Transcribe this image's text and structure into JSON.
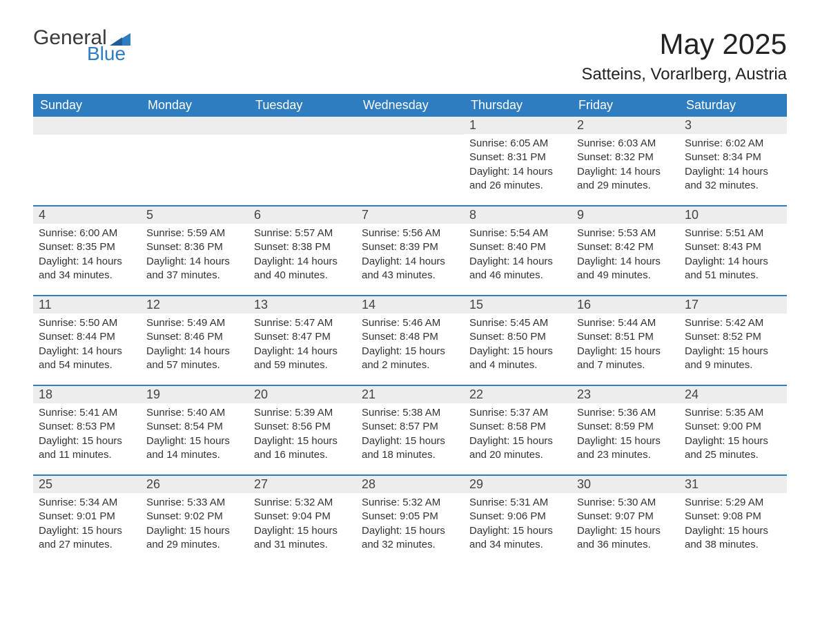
{
  "logo": {
    "general": "General",
    "blue": "Blue"
  },
  "title": "May 2025",
  "location": "Satteins, Vorarlberg, Austria",
  "colors": {
    "header_bg": "#2d7dc0",
    "header_text": "#ffffff",
    "daynum_bg": "#ededed",
    "row_border": "#2d7dc0",
    "body_text": "#333333",
    "logo_gray": "#3a3a3a",
    "logo_blue": "#2d7dc0"
  },
  "day_labels": [
    "Sunday",
    "Monday",
    "Tuesday",
    "Wednesday",
    "Thursday",
    "Friday",
    "Saturday"
  ],
  "weeks": [
    [
      null,
      null,
      null,
      null,
      {
        "n": "1",
        "sr": "Sunrise: 6:05 AM",
        "ss": "Sunset: 8:31 PM",
        "dl": "Daylight: 14 hours and 26 minutes."
      },
      {
        "n": "2",
        "sr": "Sunrise: 6:03 AM",
        "ss": "Sunset: 8:32 PM",
        "dl": "Daylight: 14 hours and 29 minutes."
      },
      {
        "n": "3",
        "sr": "Sunrise: 6:02 AM",
        "ss": "Sunset: 8:34 PM",
        "dl": "Daylight: 14 hours and 32 minutes."
      }
    ],
    [
      {
        "n": "4",
        "sr": "Sunrise: 6:00 AM",
        "ss": "Sunset: 8:35 PM",
        "dl": "Daylight: 14 hours and 34 minutes."
      },
      {
        "n": "5",
        "sr": "Sunrise: 5:59 AM",
        "ss": "Sunset: 8:36 PM",
        "dl": "Daylight: 14 hours and 37 minutes."
      },
      {
        "n": "6",
        "sr": "Sunrise: 5:57 AM",
        "ss": "Sunset: 8:38 PM",
        "dl": "Daylight: 14 hours and 40 minutes."
      },
      {
        "n": "7",
        "sr": "Sunrise: 5:56 AM",
        "ss": "Sunset: 8:39 PM",
        "dl": "Daylight: 14 hours and 43 minutes."
      },
      {
        "n": "8",
        "sr": "Sunrise: 5:54 AM",
        "ss": "Sunset: 8:40 PM",
        "dl": "Daylight: 14 hours and 46 minutes."
      },
      {
        "n": "9",
        "sr": "Sunrise: 5:53 AM",
        "ss": "Sunset: 8:42 PM",
        "dl": "Daylight: 14 hours and 49 minutes."
      },
      {
        "n": "10",
        "sr": "Sunrise: 5:51 AM",
        "ss": "Sunset: 8:43 PM",
        "dl": "Daylight: 14 hours and 51 minutes."
      }
    ],
    [
      {
        "n": "11",
        "sr": "Sunrise: 5:50 AM",
        "ss": "Sunset: 8:44 PM",
        "dl": "Daylight: 14 hours and 54 minutes."
      },
      {
        "n": "12",
        "sr": "Sunrise: 5:49 AM",
        "ss": "Sunset: 8:46 PM",
        "dl": "Daylight: 14 hours and 57 minutes."
      },
      {
        "n": "13",
        "sr": "Sunrise: 5:47 AM",
        "ss": "Sunset: 8:47 PM",
        "dl": "Daylight: 14 hours and 59 minutes."
      },
      {
        "n": "14",
        "sr": "Sunrise: 5:46 AM",
        "ss": "Sunset: 8:48 PM",
        "dl": "Daylight: 15 hours and 2 minutes."
      },
      {
        "n": "15",
        "sr": "Sunrise: 5:45 AM",
        "ss": "Sunset: 8:50 PM",
        "dl": "Daylight: 15 hours and 4 minutes."
      },
      {
        "n": "16",
        "sr": "Sunrise: 5:44 AM",
        "ss": "Sunset: 8:51 PM",
        "dl": "Daylight: 15 hours and 7 minutes."
      },
      {
        "n": "17",
        "sr": "Sunrise: 5:42 AM",
        "ss": "Sunset: 8:52 PM",
        "dl": "Daylight: 15 hours and 9 minutes."
      }
    ],
    [
      {
        "n": "18",
        "sr": "Sunrise: 5:41 AM",
        "ss": "Sunset: 8:53 PM",
        "dl": "Daylight: 15 hours and 11 minutes."
      },
      {
        "n": "19",
        "sr": "Sunrise: 5:40 AM",
        "ss": "Sunset: 8:54 PM",
        "dl": "Daylight: 15 hours and 14 minutes."
      },
      {
        "n": "20",
        "sr": "Sunrise: 5:39 AM",
        "ss": "Sunset: 8:56 PM",
        "dl": "Daylight: 15 hours and 16 minutes."
      },
      {
        "n": "21",
        "sr": "Sunrise: 5:38 AM",
        "ss": "Sunset: 8:57 PM",
        "dl": "Daylight: 15 hours and 18 minutes."
      },
      {
        "n": "22",
        "sr": "Sunrise: 5:37 AM",
        "ss": "Sunset: 8:58 PM",
        "dl": "Daylight: 15 hours and 20 minutes."
      },
      {
        "n": "23",
        "sr": "Sunrise: 5:36 AM",
        "ss": "Sunset: 8:59 PM",
        "dl": "Daylight: 15 hours and 23 minutes."
      },
      {
        "n": "24",
        "sr": "Sunrise: 5:35 AM",
        "ss": "Sunset: 9:00 PM",
        "dl": "Daylight: 15 hours and 25 minutes."
      }
    ],
    [
      {
        "n": "25",
        "sr": "Sunrise: 5:34 AM",
        "ss": "Sunset: 9:01 PM",
        "dl": "Daylight: 15 hours and 27 minutes."
      },
      {
        "n": "26",
        "sr": "Sunrise: 5:33 AM",
        "ss": "Sunset: 9:02 PM",
        "dl": "Daylight: 15 hours and 29 minutes."
      },
      {
        "n": "27",
        "sr": "Sunrise: 5:32 AM",
        "ss": "Sunset: 9:04 PM",
        "dl": "Daylight: 15 hours and 31 minutes."
      },
      {
        "n": "28",
        "sr": "Sunrise: 5:32 AM",
        "ss": "Sunset: 9:05 PM",
        "dl": "Daylight: 15 hours and 32 minutes."
      },
      {
        "n": "29",
        "sr": "Sunrise: 5:31 AM",
        "ss": "Sunset: 9:06 PM",
        "dl": "Daylight: 15 hours and 34 minutes."
      },
      {
        "n": "30",
        "sr": "Sunrise: 5:30 AM",
        "ss": "Sunset: 9:07 PM",
        "dl": "Daylight: 15 hours and 36 minutes."
      },
      {
        "n": "31",
        "sr": "Sunrise: 5:29 AM",
        "ss": "Sunset: 9:08 PM",
        "dl": "Daylight: 15 hours and 38 minutes."
      }
    ]
  ]
}
